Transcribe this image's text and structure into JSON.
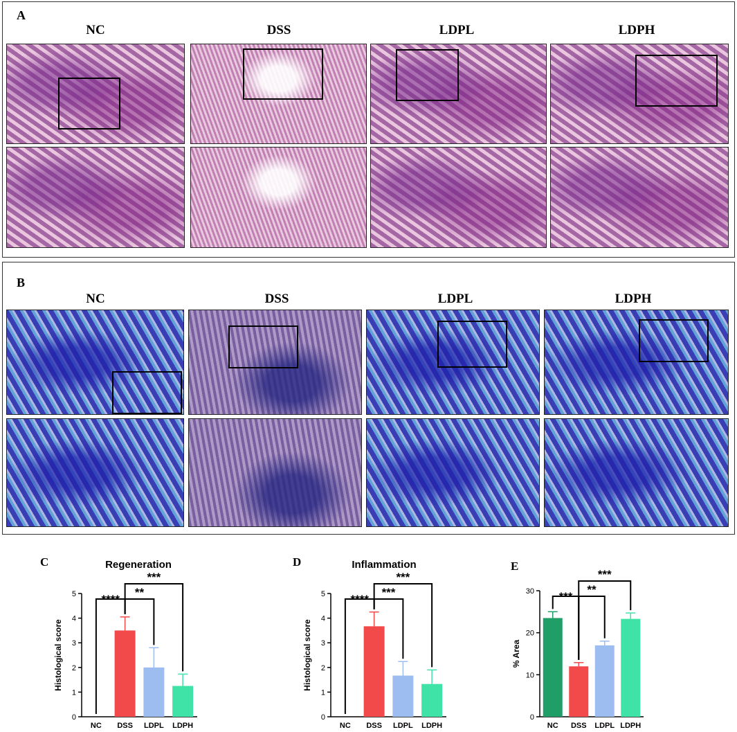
{
  "panel_a": {
    "letter": "A",
    "groups": [
      "NC",
      "DSS",
      "LDPL",
      "LDPH"
    ]
  },
  "panel_b": {
    "letter": "B",
    "groups": [
      "NC",
      "DSS",
      "LDPL",
      "LDPH"
    ]
  },
  "colors": {
    "NC": "#1f9e67",
    "DSS": "#f24a4a",
    "LDPL": "#9dbcf0",
    "LDPH": "#3fe3a8"
  },
  "chart_data": [
    {
      "letter": "C",
      "type": "bar",
      "title": "Regeneration",
      "ylabel": "Histological score",
      "categories": [
        "NC",
        "DSS",
        "LDPL",
        "LDPH"
      ],
      "values": [
        0,
        3.5,
        2.0,
        1.25
      ],
      "errors": [
        0,
        0.55,
        0.8,
        0.48
      ],
      "colors": [
        "#1f9e67",
        "#f24a4a",
        "#9dbcf0",
        "#3fe3a8"
      ],
      "ylim": [
        0,
        5
      ],
      "yticks": [
        "0",
        "1",
        "2",
        "3",
        "4",
        "5"
      ],
      "significance": [
        {
          "from": "NC",
          "to": "DSS",
          "label": "****"
        },
        {
          "from": "DSS",
          "to": "LDPL",
          "label": "**"
        },
        {
          "from": "DSS",
          "to": "LDPH",
          "label": "***"
        }
      ]
    },
    {
      "letter": "D",
      "type": "bar",
      "title": "Inflammation",
      "ylabel": "Histological score",
      "categories": [
        "NC",
        "DSS",
        "LDPL",
        "LDPH"
      ],
      "values": [
        0,
        3.67,
        1.67,
        1.33
      ],
      "errors": [
        0,
        0.58,
        0.57,
        0.57
      ],
      "colors": [
        "#1f9e67",
        "#f24a4a",
        "#9dbcf0",
        "#3fe3a8"
      ],
      "ylim": [
        0,
        5
      ],
      "yticks": [
        "0",
        "1",
        "2",
        "3",
        "4",
        "5"
      ],
      "significance": [
        {
          "from": "NC",
          "to": "DSS",
          "label": "****"
        },
        {
          "from": "DSS",
          "to": "LDPL",
          "label": "***"
        },
        {
          "from": "DSS",
          "to": "LDPH",
          "label": "***"
        }
      ]
    },
    {
      "letter": "E",
      "type": "bar",
      "title": "",
      "ylabel": "% Area",
      "categories": [
        "NC",
        "DSS",
        "LDPL",
        "LDPH"
      ],
      "values": [
        23.5,
        12.0,
        17.0,
        23.3
      ],
      "errors": [
        1.5,
        0.9,
        1.0,
        1.4
      ],
      "colors": [
        "#1f9e67",
        "#f24a4a",
        "#9dbcf0",
        "#3fe3a8"
      ],
      "ylim": [
        0,
        30
      ],
      "yticks": [
        "0",
        "10",
        "20",
        "30"
      ],
      "significance": [
        {
          "from": "NC",
          "to": "DSS",
          "label": "***"
        },
        {
          "from": "DSS",
          "to": "LDPL",
          "label": "**"
        },
        {
          "from": "DSS",
          "to": "LDPH",
          "label": "***"
        }
      ]
    }
  ]
}
